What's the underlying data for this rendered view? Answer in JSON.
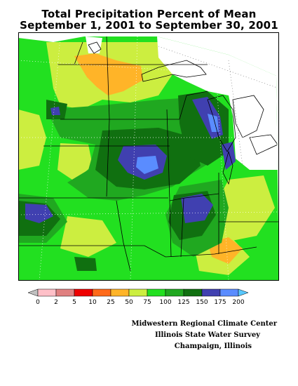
{
  "title": {
    "line1": "Total Precipitation Percent of Mean",
    "line2": "September 1, 2001 to September 30, 2001"
  },
  "legend": {
    "labels": [
      "0",
      "2",
      "5",
      "10",
      "25",
      "50",
      "75",
      "100",
      "125",
      "150",
      "175",
      "200"
    ],
    "colors": [
      "#c0c0c0",
      "#ffc0c8",
      "#e08080",
      "#ee0000",
      "#ff6a1a",
      "#ffb428",
      "#ccee40",
      "#22e020",
      "#20a820",
      "#107010",
      "#4040b0",
      "#5a8cff",
      "#58c8ff"
    ]
  },
  "credits": {
    "line1": "Midwestern Regional Climate Center",
    "line2": "Illinois State Water Survey",
    "line3": "Champaign, Illinois"
  }
}
